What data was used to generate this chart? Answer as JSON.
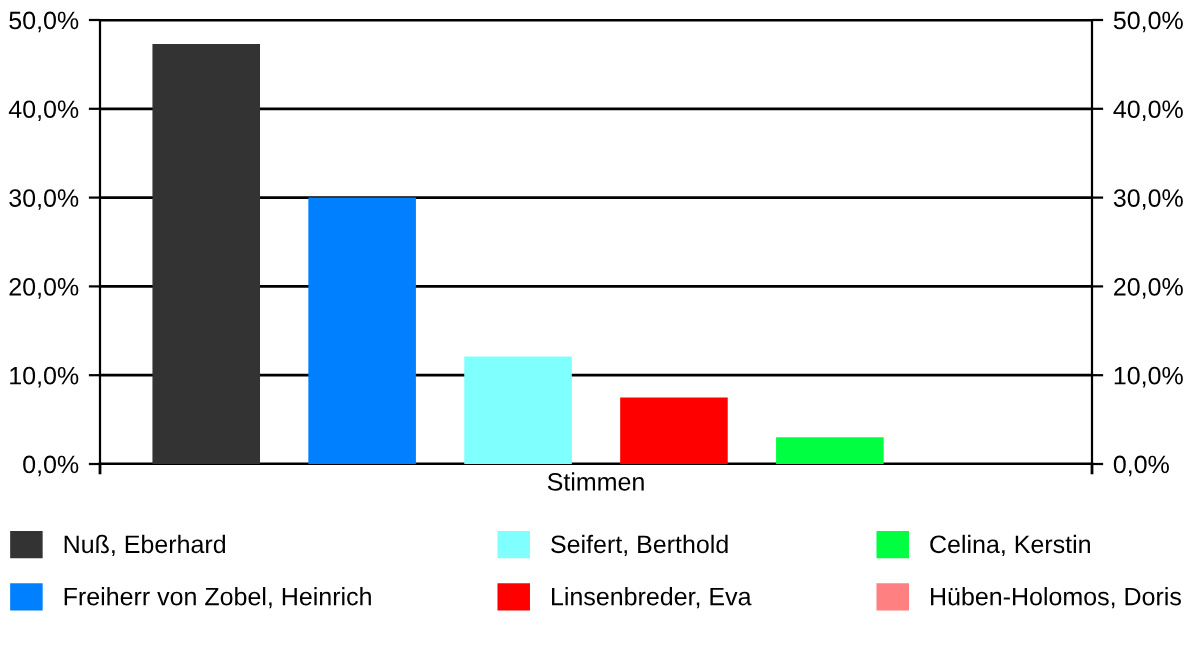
{
  "chart_data": {
    "type": "bar",
    "categories": [
      "Stimmen"
    ],
    "series": [
      {
        "name": "Nuß, Eberhard",
        "color": "#333333",
        "values": [
          47.3
        ]
      },
      {
        "name": "Freiherr von Zobel, Heinrich",
        "color": "#0080ff",
        "values": [
          30.0
        ]
      },
      {
        "name": "Seifert, Berthold",
        "color": "#80ffff",
        "values": [
          12.1
        ]
      },
      {
        "name": "Linsenbreder, Eva",
        "color": "#ff0000",
        "values": [
          7.5
        ]
      },
      {
        "name": "Celina, Kerstin",
        "color": "#00ff40",
        "values": [
          3.0
        ]
      },
      {
        "name": "Hüben-Holomos, Doris",
        "color": "#ff8080",
        "values": [
          0
        ]
      }
    ],
    "ylim": [
      0,
      50
    ],
    "yticks": [
      {
        "value": 0,
        "label": "0,0%"
      },
      {
        "value": 10,
        "label": "10,0%"
      },
      {
        "value": 20,
        "label": "20,0%"
      },
      {
        "value": 30,
        "label": "30,0%"
      },
      {
        "value": 40,
        "label": "40,0%"
      },
      {
        "value": 50,
        "label": "50,0%"
      }
    ],
    "grid": "y",
    "legend": "bottom"
  }
}
